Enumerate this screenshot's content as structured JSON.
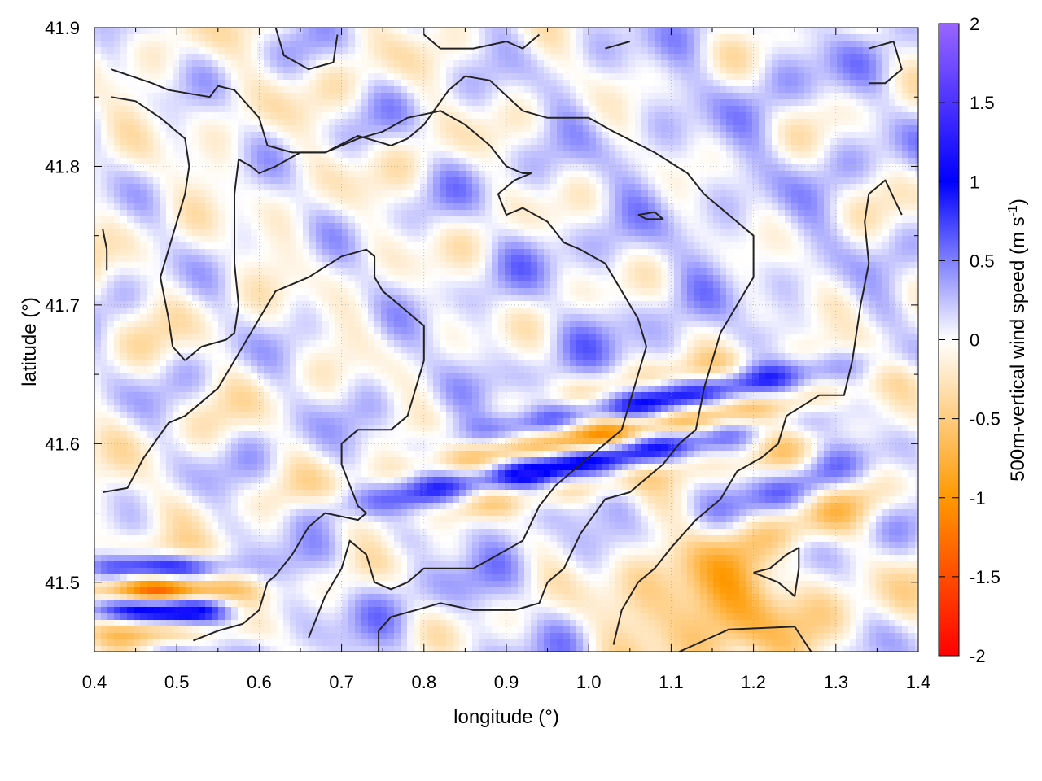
{
  "chart_data": {
    "type": "heatmap",
    "title": "",
    "xlabel": "longitude (°)",
    "ylabel": "latitude (°)",
    "colorbar_label": "500m-vertical wind speed (m s",
    "colorbar_label_sup": "-1",
    "colorbar_label_close": ")",
    "xlim": [
      0.4,
      1.4
    ],
    "ylim": [
      41.45,
      41.9
    ],
    "x_ticks": [
      0.4,
      0.5,
      0.6,
      0.7,
      0.8,
      0.9,
      1.0,
      1.1,
      1.2,
      1.3,
      1.4
    ],
    "x_tick_labels": [
      "0.4",
      "0.5",
      "0.6",
      "0.7",
      "0.8",
      "0.9",
      "1.0",
      "1.1",
      "1.2",
      "1.3",
      "1.4"
    ],
    "y_ticks": [
      41.5,
      41.6,
      41.7,
      41.8,
      41.9
    ],
    "y_tick_labels": [
      "41.5",
      "41.6",
      "41.7",
      "41.8",
      "41.9"
    ],
    "clim": [
      -2,
      2
    ],
    "colorbar_ticks": [
      2,
      1.5,
      1,
      0.5,
      0,
      -0.5,
      -1,
      -1.5,
      -2
    ],
    "colorbar_tick_labels": [
      "2",
      "1.5",
      "1",
      "0.5",
      "0",
      "-0.5",
      "-1",
      "-1.5",
      "-2"
    ],
    "colormap": [
      "#ff0000",
      "#ff9900",
      "#ffffff",
      "#0000ff",
      "#9966ff"
    ],
    "grid": true,
    "contour_color": "#222222",
    "contours": [
      [
        [
          0.42,
          41.87
        ],
        [
          0.47,
          41.86
        ],
        [
          0.49,
          41.855
        ],
        [
          0.54,
          41.85
        ],
        [
          0.55,
          41.858
        ],
        [
          0.57,
          41.855
        ],
        [
          0.6,
          41.835
        ],
        [
          0.61,
          41.815
        ],
        [
          0.64,
          41.81
        ],
        [
          0.68,
          41.81
        ],
        [
          0.72,
          41.822
        ],
        [
          0.76,
          41.815
        ],
        [
          0.78,
          41.82
        ],
        [
          0.8,
          41.83
        ],
        [
          0.83,
          41.855
        ],
        [
          0.85,
          41.865
        ],
        [
          0.88,
          41.862
        ],
        [
          0.92,
          41.84
        ],
        [
          0.95,
          41.835
        ],
        [
          1.0,
          41.835
        ],
        [
          1.03,
          41.825
        ],
        [
          1.08,
          41.81
        ],
        [
          1.12,
          41.795
        ],
        [
          1.14,
          41.78
        ],
        [
          1.17,
          41.765
        ],
        [
          1.2,
          41.75
        ],
        [
          1.2,
          41.72
        ],
        [
          1.18,
          41.7
        ],
        [
          1.16,
          41.68
        ],
        [
          1.15,
          41.66
        ],
        [
          1.14,
          41.64
        ],
        [
          1.13,
          41.61
        ],
        [
          1.11,
          41.6
        ],
        [
          1.09,
          41.585
        ],
        [
          1.07,
          41.575
        ],
        [
          1.05,
          41.565
        ],
        [
          1.02,
          41.56
        ],
        [
          0.99,
          41.535
        ],
        [
          0.97,
          41.51
        ],
        [
          0.95,
          41.5
        ],
        [
          0.94,
          41.485
        ],
        [
          0.91,
          41.48
        ],
        [
          0.89,
          41.48
        ],
        [
          0.86,
          41.48
        ],
        [
          0.82,
          41.485
        ],
        [
          0.79,
          41.48
        ],
        [
          0.76,
          41.475
        ],
        [
          0.745,
          41.465
        ],
        [
          0.745,
          41.45
        ]
      ],
      [
        [
          0.42,
          41.85
        ],
        [
          0.45,
          41.847
        ],
        [
          0.48,
          41.835
        ],
        [
          0.51,
          41.82
        ],
        [
          0.515,
          41.8
        ],
        [
          0.51,
          41.78
        ],
        [
          0.5,
          41.76
        ],
        [
          0.49,
          41.74
        ],
        [
          0.48,
          41.72
        ],
        [
          0.49,
          41.69
        ],
        [
          0.495,
          41.67
        ],
        [
          0.51,
          41.66
        ]
      ],
      [
        [
          0.41,
          41.565
        ],
        [
          0.44,
          41.568
        ],
        [
          0.46,
          41.59
        ],
        [
          0.49,
          41.615
        ],
        [
          0.51,
          41.62
        ],
        [
          0.53,
          41.63
        ],
        [
          0.55,
          41.64
        ],
        [
          0.57,
          41.66
        ],
        [
          0.6,
          41.69
        ],
        [
          0.62,
          41.71
        ],
        [
          0.66,
          41.72
        ],
        [
          0.7,
          41.735
        ],
        [
          0.73,
          41.74
        ],
        [
          0.74,
          41.735
        ],
        [
          0.74,
          41.72
        ],
        [
          0.75,
          41.71
        ],
        [
          0.78,
          41.695
        ],
        [
          0.8,
          41.685
        ],
        [
          0.8,
          41.66
        ],
        [
          0.79,
          41.64
        ],
        [
          0.78,
          41.62
        ],
        [
          0.76,
          41.61
        ],
        [
          0.72,
          41.61
        ],
        [
          0.7,
          41.6
        ],
        [
          0.7,
          41.585
        ],
        [
          0.71,
          41.57
        ],
        [
          0.72,
          41.555
        ],
        [
          0.73,
          41.55
        ],
        [
          0.72,
          41.545
        ],
        [
          0.68,
          41.55
        ],
        [
          0.66,
          41.54
        ],
        [
          0.64,
          41.52
        ],
        [
          0.62,
          41.505
        ],
        [
          0.61,
          41.5
        ],
        [
          0.6,
          41.48
        ],
        [
          0.58,
          41.47
        ],
        [
          0.55,
          41.465
        ],
        [
          0.52,
          41.458
        ]
      ],
      [
        [
          0.51,
          41.66
        ],
        [
          0.53,
          41.67
        ],
        [
          0.56,
          41.675
        ],
        [
          0.57,
          41.68
        ],
        [
          0.575,
          41.7
        ],
        [
          0.57,
          41.73
        ],
        [
          0.57,
          41.75
        ],
        [
          0.57,
          41.78
        ],
        [
          0.575,
          41.805
        ],
        [
          0.59,
          41.8
        ],
        [
          0.6,
          41.795
        ],
        [
          0.62,
          41.8
        ],
        [
          0.65,
          41.81
        ],
        [
          0.68,
          41.81
        ],
        [
          0.72,
          41.82
        ],
        [
          0.75,
          41.825
        ],
        [
          0.78,
          41.835
        ],
        [
          0.82,
          41.84
        ],
        [
          0.85,
          41.83
        ],
        [
          0.88,
          41.815
        ],
        [
          0.9,
          41.8
        ],
        [
          0.92,
          41.795
        ],
        [
          0.93,
          41.795
        ],
        [
          0.91,
          41.79
        ],
        [
          0.89,
          41.78
        ],
        [
          0.9,
          41.765
        ],
        [
          0.92,
          41.77
        ],
        [
          0.95,
          41.76
        ],
        [
          0.97,
          41.745
        ],
        [
          0.99,
          41.74
        ],
        [
          1.02,
          41.73
        ],
        [
          1.04,
          41.71
        ],
        [
          1.06,
          41.69
        ],
        [
          1.07,
          41.67
        ],
        [
          1.06,
          41.65
        ],
        [
          1.05,
          41.63
        ],
        [
          1.04,
          41.61
        ],
        [
          1.02,
          41.6
        ],
        [
          1.0,
          41.59
        ],
        [
          0.98,
          41.58
        ],
        [
          0.96,
          41.57
        ],
        [
          0.94,
          41.555
        ],
        [
          0.92,
          41.53
        ],
        [
          0.89,
          41.52
        ],
        [
          0.86,
          41.51
        ],
        [
          0.83,
          41.51
        ],
        [
          0.8,
          41.51
        ],
        [
          0.78,
          41.5
        ],
        [
          0.76,
          41.495
        ],
        [
          0.74,
          41.5
        ],
        [
          0.73,
          41.52
        ],
        [
          0.71,
          41.53
        ],
        [
          0.7,
          41.51
        ],
        [
          0.68,
          41.49
        ],
        [
          0.66,
          41.46
        ]
      ],
      [
        [
          1.03,
          41.455
        ],
        [
          1.04,
          41.48
        ],
        [
          1.06,
          41.5
        ],
        [
          1.08,
          41.51
        ],
        [
          1.1,
          41.525
        ],
        [
          1.13,
          41.545
        ],
        [
          1.16,
          41.56
        ],
        [
          1.18,
          41.58
        ],
        [
          1.21,
          41.59
        ],
        [
          1.23,
          41.6
        ],
        [
          1.24,
          41.62
        ],
        [
          1.28,
          41.635
        ],
        [
          1.31,
          41.635
        ],
        [
          1.32,
          41.66
        ],
        [
          1.33,
          41.7
        ],
        [
          1.34,
          41.73
        ],
        [
          1.335,
          41.76
        ],
        [
          1.34,
          41.78
        ],
        [
          1.36,
          41.79
        ],
        [
          1.38,
          41.765
        ]
      ],
      [
        [
          1.11,
          41.45
        ],
        [
          1.17,
          41.466
        ],
        [
          1.25,
          41.468
        ],
        [
          1.27,
          41.45
        ]
      ],
      [
        [
          1.2,
          41.507
        ],
        [
          1.23,
          41.5
        ],
        [
          1.25,
          41.49
        ],
        [
          1.255,
          41.51
        ],
        [
          1.255,
          41.525
        ],
        [
          1.24,
          41.52
        ],
        [
          1.22,
          41.51
        ],
        [
          1.2,
          41.507
        ]
      ],
      [
        [
          0.41,
          41.755
        ],
        [
          0.415,
          41.74
        ],
        [
          0.415,
          41.725
        ]
      ],
      [
        [
          1.34,
          41.885
        ],
        [
          1.37,
          41.89
        ],
        [
          1.38,
          41.87
        ],
        [
          1.36,
          41.86
        ],
        [
          1.34,
          41.86
        ]
      ],
      [
        [
          0.62,
          41.9
        ],
        [
          0.63,
          41.88
        ],
        [
          0.66,
          41.87
        ],
        [
          0.69,
          41.875
        ],
        [
          0.695,
          41.895
        ]
      ],
      [
        [
          0.8,
          41.895
        ],
        [
          0.82,
          41.885
        ],
        [
          0.86,
          41.885
        ],
        [
          0.9,
          41.89
        ]
      ],
      [
        [
          0.9,
          41.89
        ],
        [
          0.92,
          41.885
        ],
        [
          0.94,
          41.895
        ]
      ],
      [
        [
          1.02,
          41.885
        ],
        [
          1.05,
          41.89
        ]
      ],
      [
        [
          1.06,
          41.765
        ],
        [
          1.08,
          41.767
        ],
        [
          1.09,
          41.762
        ],
        [
          1.07,
          41.762
        ],
        [
          1.06,
          41.765
        ]
      ]
    ]
  }
}
